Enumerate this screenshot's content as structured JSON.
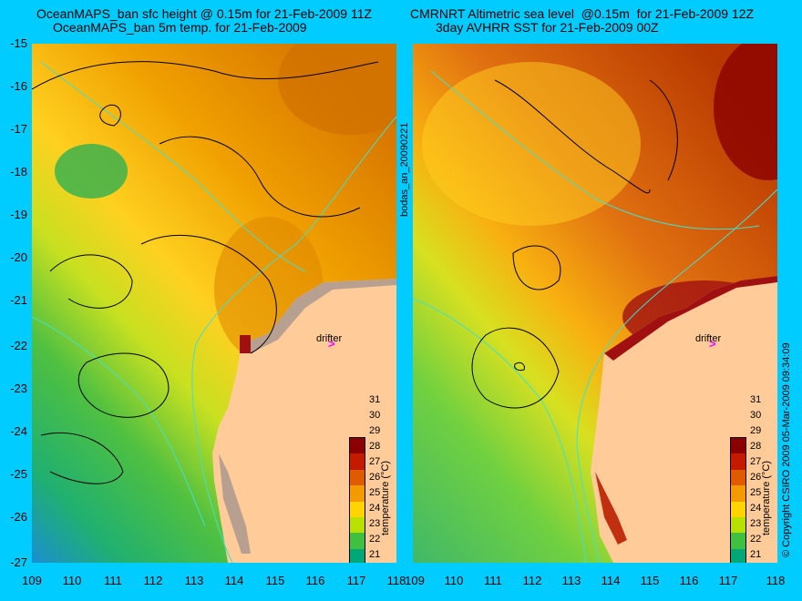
{
  "titles": {
    "left_line1": "OceanMAPS_ban sfc height @ 0.15m for 21-Feb-2009 11Z",
    "left_line2": "OceanMAPS_ban 5m temp. for 21-Feb-2009",
    "right_line1": "CMRNRT Altimetric sea level  @0.15m  for 21-Feb-2009 12Z",
    "right_line2": "3day AVHRR SST for 21-Feb-2009 00Z"
  },
  "y_ticks": [
    "-15",
    "-16",
    "-17",
    "-18",
    "-19",
    "-20",
    "-21",
    "-22",
    "-23",
    "-24",
    "-25",
    "-26",
    "-27"
  ],
  "x_ticks": [
    "109",
    "110",
    "111",
    "112",
    "113",
    "114",
    "115",
    "116",
    "117",
    "118"
  ],
  "x_ticks_right": [
    "109",
    "110",
    "111",
    "112",
    "113",
    "114",
    "115",
    "116",
    "117",
    "118"
  ],
  "drifter": {
    "label": "drifter",
    "marker": ">",
    "color": "#ff00ff"
  },
  "colorbar": {
    "label": "temperature (°C)",
    "ticks": [
      "31",
      "30",
      "29",
      "28",
      "27",
      "26",
      "25",
      "24",
      "23",
      "22",
      "21"
    ],
    "colors": [
      "#8b0000",
      "#c41a00",
      "#e05a00",
      "#f29a00",
      "#ffd400",
      "#b8e000",
      "#40c040",
      "#00a878",
      "#00a0c8",
      "#2060d8",
      "#1010a0"
    ]
  },
  "vertical_texts": {
    "run_id": "bodas_an_20090221",
    "copyright": "© Copyright CSIRO 2009  05-Mar-2009 09:34:09"
  },
  "map": {
    "lon_range": [
      109,
      118
    ],
    "lat_range": [
      -27,
      -15
    ],
    "land_color": "#ffcc99",
    "contour_color": "#000000",
    "isobath_color": "#40e0d0"
  }
}
